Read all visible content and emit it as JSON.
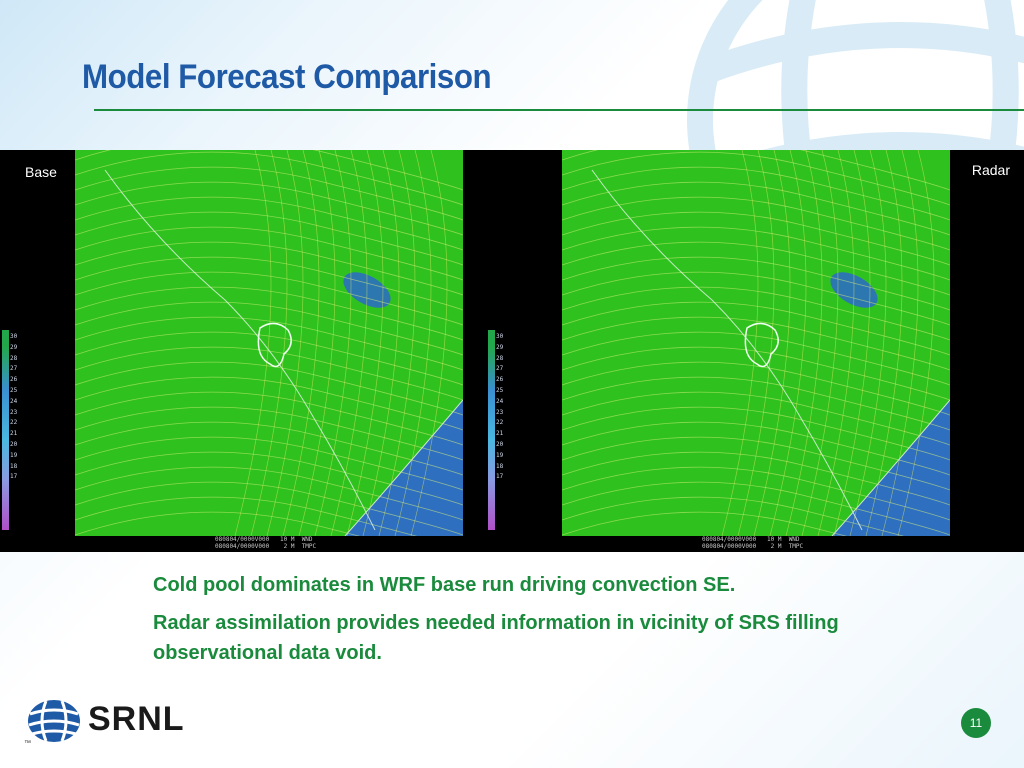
{
  "slide": {
    "title": "Model Forecast Comparison",
    "page_number": "11",
    "logo_text": "SRNL",
    "trademark": "™"
  },
  "panels": {
    "left": {
      "label": "Base",
      "caption": "080804/0000V000   10 M  WND\n080804/0000V000    2 M  TMPC",
      "scale_ticks": [
        "30",
        "29",
        "28",
        "27",
        "26",
        "25",
        "24",
        "23",
        "22",
        "21",
        "20",
        "19",
        "18",
        "17"
      ]
    },
    "right": {
      "label": "Radar",
      "caption": "080804/0000V000   10 M  WND\n080804/0000V000    2 M  TMPC",
      "scale_ticks": [
        "30",
        "29",
        "28",
        "27",
        "26",
        "25",
        "24",
        "23",
        "22",
        "21",
        "20",
        "19",
        "18",
        "17"
      ]
    }
  },
  "bullets": [
    "Cold pool dominates in WRF base run driving convection SE.",
    "Radar assimilation provides needed information in vicinity of SRS filling observational data void."
  ],
  "colors": {
    "title": "#1f5aa6",
    "accent_green": "#1a8a3c",
    "map_green": "#2fc21f",
    "ocean_blue": "#2e6fc0"
  }
}
